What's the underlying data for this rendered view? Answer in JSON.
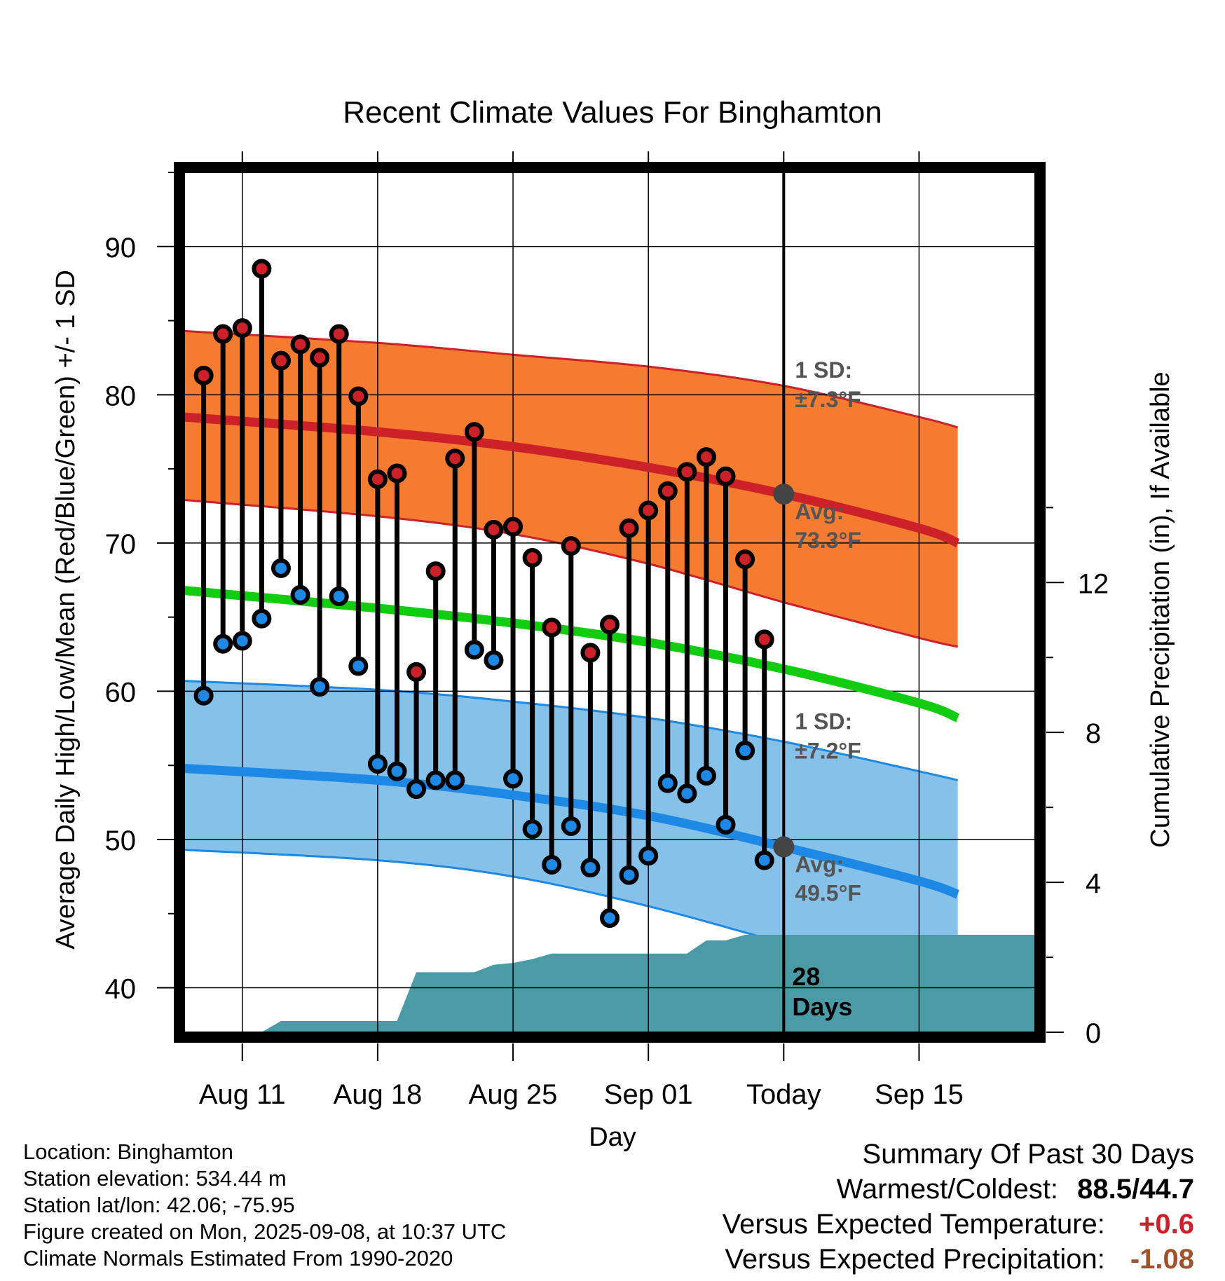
{
  "chart_data": {
    "type": "line",
    "title": "Recent Climate Values For Binghamton",
    "xlabel": "Day",
    "ylabel": "Average Daily High/Low/Mean (Red/Blue/Green) +/- 1 SD",
    "y2label": "Cumulative Precipitation (in), If Available",
    "x_range": [
      "2025-08-08",
      "2025-09-21"
    ],
    "ylim": [
      37,
      95
    ],
    "y2lim": [
      0,
      23
    ],
    "grid": true,
    "x_ticks": [
      {
        "date": "2025-08-11",
        "label": "Aug 11"
      },
      {
        "date": "2025-08-18",
        "label": "Aug 18"
      },
      {
        "date": "2025-08-25",
        "label": "Aug 25"
      },
      {
        "date": "2025-09-01",
        "label": "Sep 01"
      },
      {
        "date": "2025-09-08",
        "label": "Today"
      },
      {
        "date": "2025-09-15",
        "label": "Sep 15"
      }
    ],
    "y_ticks": [
      "40",
      "50",
      "60",
      "70",
      "80",
      "90"
    ],
    "y2_ticks": [
      "0",
      "4",
      "8",
      "12"
    ],
    "today": "2025-09-08",
    "normals": {
      "x": [
        "2025-08-08",
        "2025-08-18",
        "2025-08-25",
        "2025-09-01",
        "2025-09-08",
        "2025-09-15",
        "2025-09-17"
      ],
      "high_mean": [
        78.5,
        77.5,
        76.5,
        75.1,
        73.3,
        71.0,
        70.0
      ],
      "low_mean": [
        54.8,
        54.0,
        53.0,
        51.6,
        49.5,
        47.2,
        46.3
      ],
      "mean": [
        66.8,
        65.6,
        64.6,
        63.3,
        61.5,
        59.2,
        58.2
      ],
      "high_sd_upper": [
        84.3,
        83.5,
        82.7,
        81.9,
        80.6,
        78.5,
        77.8
      ],
      "high_sd_lower": [
        72.9,
        71.8,
        70.6,
        68.6,
        66.0,
        63.6,
        63.0
      ],
      "low_sd_upper": [
        60.7,
        60.1,
        59.3,
        58.2,
        56.6,
        54.6,
        54.0
      ],
      "low_sd_lower": [
        49.3,
        48.6,
        47.5,
        45.5,
        43.0,
        40.5,
        40.0
      ]
    },
    "series": [
      {
        "name": "High",
        "color": "#cc2129",
        "x": [
          "2025-08-09",
          "2025-08-10",
          "2025-08-11",
          "2025-08-12",
          "2025-08-13",
          "2025-08-14",
          "2025-08-15",
          "2025-08-16",
          "2025-08-17",
          "2025-08-18",
          "2025-08-19",
          "2025-08-20",
          "2025-08-21",
          "2025-08-22",
          "2025-08-23",
          "2025-08-24",
          "2025-08-25",
          "2025-08-26",
          "2025-08-27",
          "2025-08-28",
          "2025-08-29",
          "2025-08-30",
          "2025-08-31",
          "2025-09-01",
          "2025-09-02",
          "2025-09-03",
          "2025-09-04",
          "2025-09-05",
          "2025-09-06",
          "2025-09-07"
        ],
        "values": [
          81.3,
          84.1,
          84.5,
          88.5,
          82.3,
          83.4,
          82.5,
          84.1,
          79.9,
          74.3,
          74.7,
          61.3,
          68.1,
          75.7,
          77.5,
          70.9,
          71.1,
          69.0,
          64.3,
          69.8,
          62.6,
          64.5,
          71.0,
          72.2,
          73.5,
          74.8,
          75.8,
          74.5,
          68.9,
          63.5
        ]
      },
      {
        "name": "Low",
        "color": "#1e88e5",
        "x": [
          "2025-08-09",
          "2025-08-10",
          "2025-08-11",
          "2025-08-12",
          "2025-08-13",
          "2025-08-14",
          "2025-08-15",
          "2025-08-16",
          "2025-08-17",
          "2025-08-18",
          "2025-08-19",
          "2025-08-20",
          "2025-08-21",
          "2025-08-22",
          "2025-08-23",
          "2025-08-24",
          "2025-08-25",
          "2025-08-26",
          "2025-08-27",
          "2025-08-28",
          "2025-08-29",
          "2025-08-30",
          "2025-08-31",
          "2025-09-01",
          "2025-09-02",
          "2025-09-03",
          "2025-09-04",
          "2025-09-05",
          "2025-09-06",
          "2025-09-07"
        ],
        "values": [
          59.7,
          63.2,
          63.4,
          64.9,
          68.3,
          66.5,
          60.3,
          66.4,
          61.7,
          55.1,
          54.6,
          53.4,
          54.0,
          54.0,
          62.8,
          62.1,
          54.1,
          50.7,
          48.3,
          50.9,
          48.1,
          44.7,
          47.6,
          48.9,
          53.8,
          53.1,
          54.3,
          51.0,
          56.0,
          48.6
        ]
      },
      {
        "name": "Cumulative Precipitation",
        "color": "#4a9ba6",
        "x": [
          "2025-08-12",
          "2025-08-13",
          "2025-08-14",
          "2025-08-15",
          "2025-08-16",
          "2025-08-17",
          "2025-08-18",
          "2025-08-19",
          "2025-08-20",
          "2025-08-21",
          "2025-08-22",
          "2025-08-23",
          "2025-08-24",
          "2025-08-25",
          "2025-08-26",
          "2025-08-27",
          "2025-08-28",
          "2025-08-29",
          "2025-08-30",
          "2025-08-31",
          "2025-09-01",
          "2025-09-02",
          "2025-09-03",
          "2025-09-04",
          "2025-09-05",
          "2025-09-06",
          "2025-09-07",
          "2025-09-08",
          "2025-09-21"
        ],
        "values": [
          0.0,
          0.3,
          0.3,
          0.3,
          0.3,
          0.3,
          0.3,
          0.3,
          1.6,
          1.6,
          1.6,
          1.6,
          1.8,
          1.85,
          1.95,
          2.1,
          2.1,
          2.1,
          2.1,
          2.1,
          2.1,
          2.1,
          2.1,
          2.45,
          2.45,
          2.6,
          2.6,
          2.6,
          2.6
        ]
      }
    ],
    "annotations": {
      "high_sd_label": "1 SD:",
      "high_sd_value": "±7.3°F",
      "high_avg_label": "Avg:",
      "high_avg_value": "73.3°F",
      "low_sd_label": "1 SD:",
      "low_sd_value": "±7.2°F",
      "low_avg_label": "Avg:",
      "low_avg_value": "49.5°F",
      "precip_days_1": "28",
      "precip_days_2": "Days"
    },
    "colors": {
      "high_band": "#f47b30",
      "high_mean": "#cc2129",
      "mean": "#11cc11",
      "low_band": "#85c1e9",
      "low_mean": "#1e88e5",
      "precip": "#4a9ba6",
      "annotation": "#555555"
    }
  },
  "info": {
    "location": "Location: Binghamton",
    "elevation": "Station elevation: 534.44 m",
    "latlon": "Station lat/lon: 42.06; -75.95",
    "created": "Figure created on Mon, 2025-09-08, at 10:37 UTC",
    "normals": "Climate Normals Estimated From 1990-2020"
  },
  "summary": {
    "title": "Summary Of Past 30 Days",
    "warmest_label": "Warmest/Coldest:",
    "warmest_value": "88.5/44.7",
    "temp_label": "Versus Expected Temperature:",
    "temp_value": "+0.6",
    "temp_color": "#cc2129",
    "precip_label": "Versus Expected Precipitation:",
    "precip_value": "-1.08",
    "precip_color": "#a0522d"
  }
}
